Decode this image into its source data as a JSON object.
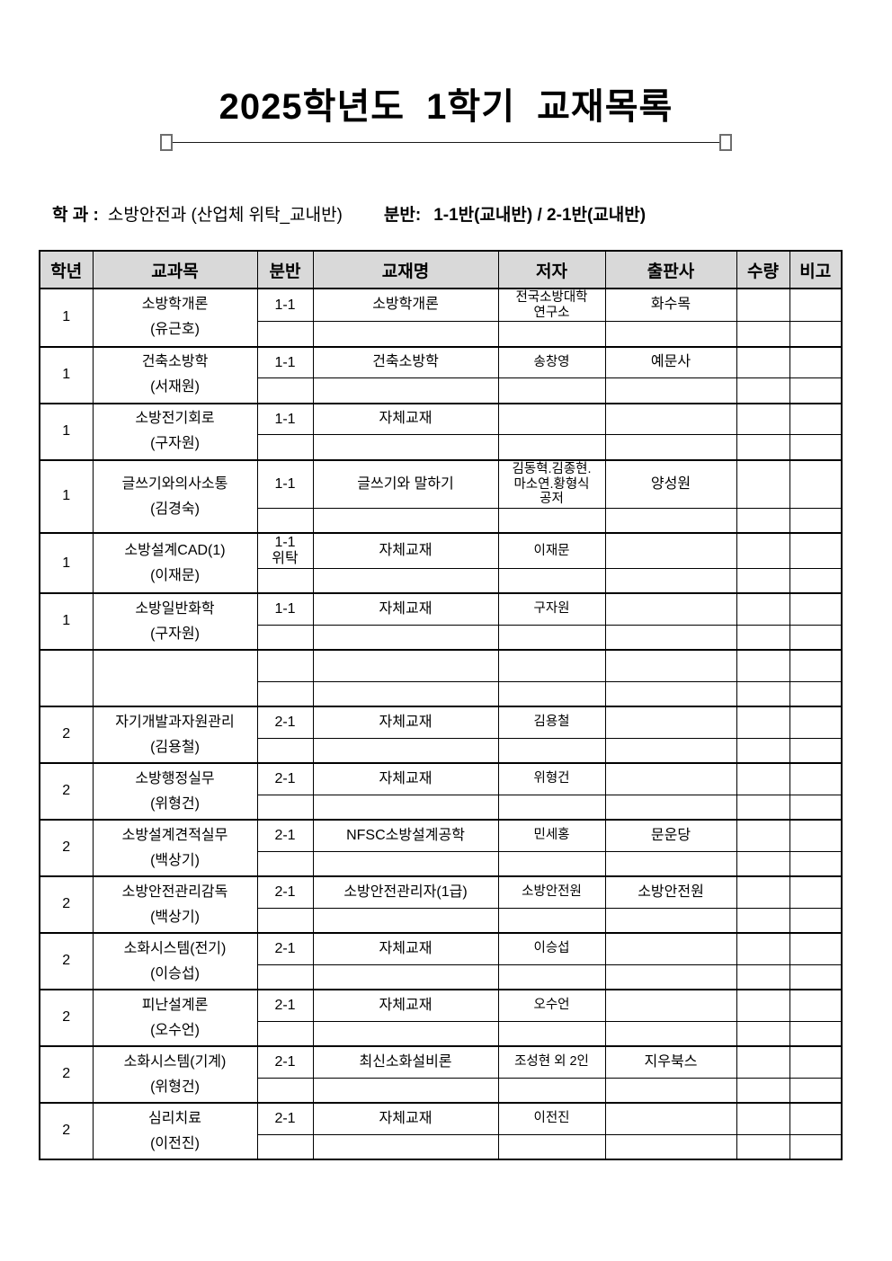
{
  "page": {
    "title": "2025학년도 1학기 교재목록"
  },
  "meta": {
    "dept_label": "학 과 :",
    "dept_value": "소방안전과 (산업체 위탁_교내반)",
    "class_label": "분반:",
    "class_value": "1-1반(교내반) / 2-1반(교내반)"
  },
  "colors": {
    "header_bg": "#d9d9d9",
    "border": "#000000",
    "rule_square_border": "#6e6e6e"
  },
  "table": {
    "headers": [
      "학년",
      "교과목",
      "분반",
      "교재명",
      "저자",
      "출판사",
      "수량",
      "비고"
    ],
    "rows": [
      {
        "grade": "1",
        "subject": "소방학개론",
        "professor": "(유근호)",
        "section": "1-1",
        "book": "소방학개론",
        "author": "전국소방대학\n연구소",
        "publisher": "화수목",
        "qty": "",
        "note": ""
      },
      {
        "grade": "1",
        "subject": "건축소방학",
        "professor": "(서재원)",
        "section": "1-1",
        "book": "건축소방학",
        "author": "송창영",
        "publisher": "예문사",
        "qty": "",
        "note": ""
      },
      {
        "grade": "1",
        "subject": "소방전기회로",
        "professor": "(구자원)",
        "section": "1-1",
        "book": "자체교재",
        "author": "",
        "publisher": "",
        "qty": "",
        "note": ""
      },
      {
        "grade": "1",
        "subject": "글쓰기와의사소통",
        "professor": "(김경숙)",
        "section": "1-1",
        "book": "글쓰기와 말하기",
        "author": "김동혁.김종현.\n마소연.황형식\n공저",
        "publisher": "양성원",
        "qty": "",
        "note": ""
      },
      {
        "grade": "1",
        "subject": "소방설계CAD(1)",
        "professor": "(이재문)",
        "section": "1-1\n위탁",
        "book": "자체교재",
        "author": "이재문",
        "publisher": "",
        "qty": "",
        "note": ""
      },
      {
        "grade": "1",
        "subject": "소방일반화학",
        "professor": "(구자원)",
        "section": "1-1",
        "book": "자체교재",
        "author": "구자원",
        "publisher": "",
        "qty": "",
        "note": ""
      },
      {
        "grade": "",
        "subject": "",
        "professor": "",
        "section": "",
        "book": "",
        "author": "",
        "publisher": "",
        "qty": "",
        "note": ""
      },
      {
        "grade": "2",
        "subject": "자기개발과자원관리",
        "professor": "(김용철)",
        "section": "2-1",
        "book": "자체교재",
        "author": "김용철",
        "publisher": "",
        "qty": "",
        "note": ""
      },
      {
        "grade": "2",
        "subject": "소방행정실무",
        "professor": "(위형건)",
        "section": "2-1",
        "book": "자체교재",
        "author": "위형건",
        "publisher": "",
        "qty": "",
        "note": ""
      },
      {
        "grade": "2",
        "subject": "소방설계견적실무",
        "professor": "(백상기)",
        "section": "2-1",
        "book": "NFSC소방설계공학",
        "author": "민세홍",
        "publisher": "문운당",
        "qty": "",
        "note": ""
      },
      {
        "grade": "2",
        "subject": "소방안전관리감독",
        "professor": "(백상기)",
        "section": "2-1",
        "book": "소방안전관리자(1급)",
        "author": "소방안전원",
        "publisher": "소방안전원",
        "qty": "",
        "note": ""
      },
      {
        "grade": "2",
        "subject": "소화시스템(전기)",
        "professor": "(이승섭)",
        "section": "2-1",
        "book": "자체교재",
        "author": "이승섭",
        "publisher": "",
        "qty": "",
        "note": ""
      },
      {
        "grade": "2",
        "subject": "피난설계론",
        "professor": "(오수언)",
        "section": "2-1",
        "book": "자체교재",
        "author": "오수언",
        "publisher": "",
        "qty": "",
        "note": ""
      },
      {
        "grade": "2",
        "subject": "소화시스템(기계)",
        "professor": "(위형건)",
        "section": "2-1",
        "book": "최신소화설비론",
        "author": "조성현 외 2인",
        "publisher": "지우북스",
        "qty": "",
        "note": ""
      },
      {
        "grade": "2",
        "subject": "심리치료",
        "professor": "(이전진)",
        "section": "2-1",
        "book": "자체교재",
        "author": "이전진",
        "publisher": "",
        "qty": "",
        "note": ""
      }
    ]
  }
}
